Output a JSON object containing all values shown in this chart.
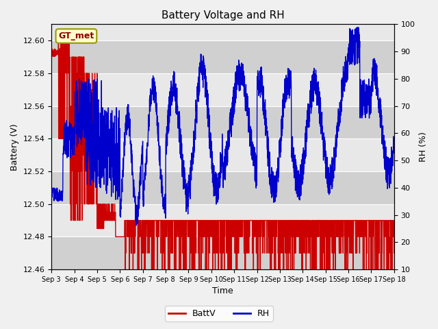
{
  "title": "Battery Voltage and RH",
  "xlabel": "Time",
  "ylabel_left": "Battery (V)",
  "ylabel_right": "RH (%)",
  "annotation": "GT_met",
  "left_ylim": [
    12.46,
    12.61
  ],
  "right_ylim": [
    10,
    100
  ],
  "left_yticks": [
    12.46,
    12.48,
    12.5,
    12.52,
    12.54,
    12.56,
    12.58,
    12.6
  ],
  "right_yticks": [
    10,
    20,
    30,
    40,
    50,
    60,
    70,
    80,
    90,
    100
  ],
  "x_tick_labels": [
    "Sep 3",
    "Sep 4",
    "Sep 5",
    "Sep 6",
    "Sep 7",
    "Sep 8",
    "Sep 9",
    "Sep 10",
    "Sep 11",
    "Sep 12",
    "Sep 13",
    "Sep 14",
    "Sep 15",
    "Sep 16",
    "Sep 17",
    "Sep 18"
  ],
  "batt_color": "#cc0000",
  "rh_color": "#0000cc",
  "legend_batt": "BattV",
  "legend_rh": "RH",
  "fig_bg": "#f0f0f0",
  "band_light": "#e8e8e8",
  "band_dark": "#d0d0d0",
  "title_fontsize": 11,
  "axis_fontsize": 9,
  "tick_fontsize": 8,
  "annotation_bg": "#ffffcc",
  "annotation_border": "#999900",
  "annotation_color": "#880000"
}
